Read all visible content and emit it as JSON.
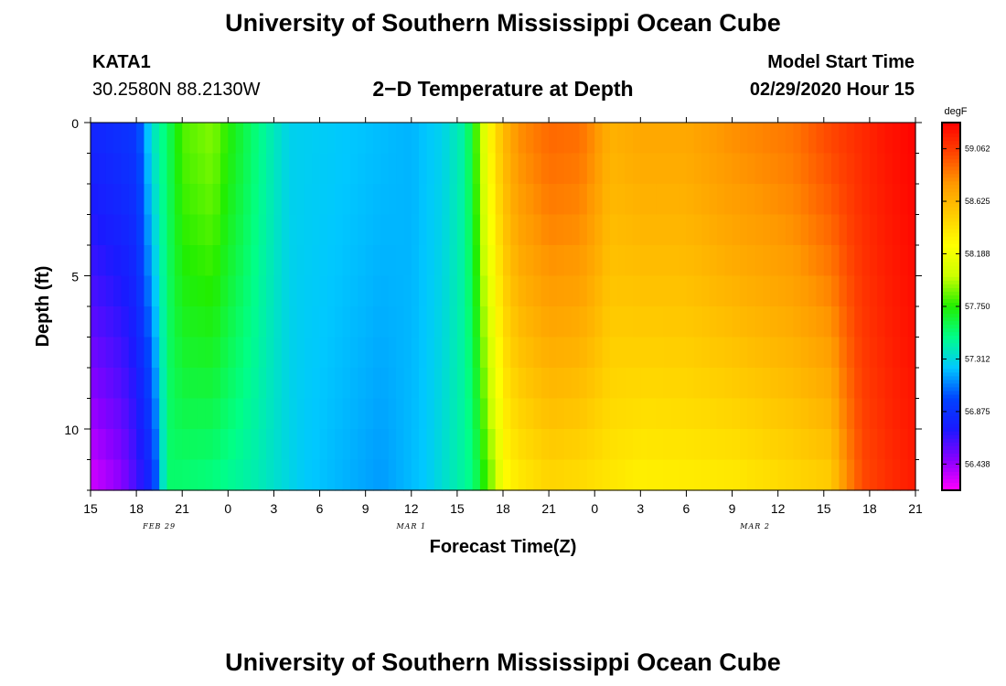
{
  "header": {
    "title_top": "University of Southern Mississippi Ocean Cube",
    "title_bottom": "University of Southern Mississippi Ocean Cube",
    "station": "KATA1",
    "location": "30.2580N 88.2130W",
    "center_title": "2−D Temperature at Depth",
    "model_label": "Model Start Time",
    "model_time": "02/29/2020 Hour 15"
  },
  "chart_data": {
    "type": "heatmap",
    "title": "2−D Temperature at Depth",
    "xlabel": "Forecast Time(Z)",
    "ylabel": "Depth (ft)",
    "x_hours_from_start": [
      0,
      54
    ],
    "x_ticks": [
      "15",
      "18",
      "21",
      "0",
      "3",
      "6",
      "9",
      "12",
      "15",
      "18",
      "21",
      "0",
      "3",
      "6",
      "9",
      "12",
      "15",
      "18",
      "21"
    ],
    "date_labels": [
      {
        "label": "FEB 29",
        "hour": 4.5
      },
      {
        "label": "MAR 1",
        "hour": 21
      },
      {
        "label": "MAR 2",
        "hour": 43.5
      }
    ],
    "ylim": [
      0,
      12
    ],
    "y_major_ticks": [
      0,
      5,
      10
    ],
    "colorbar": {
      "unit": "degF",
      "min": 56.22,
      "max": 59.28,
      "labels": [
        "59.062",
        "58.625",
        "58.188",
        "57.750",
        "57.312",
        "56.875",
        "56.438"
      ],
      "stops": [
        "#ff00ff",
        "#8800ff",
        "#1a1aff",
        "#0044ff",
        "#00c8ff",
        "#00ff88",
        "#22ee00",
        "#ccff00",
        "#ffff00",
        "#ffcc00",
        "#ff9900",
        "#ff4400",
        "#ff0000"
      ]
    },
    "surface_profile": [
      {
        "h": 0,
        "v": 56.8
      },
      {
        "h": 3,
        "v": 56.9
      },
      {
        "h": 4,
        "v": 57.35
      },
      {
        "h": 5,
        "v": 57.55
      },
      {
        "h": 6,
        "v": 57.82
      },
      {
        "h": 8,
        "v": 57.9
      },
      {
        "h": 9,
        "v": 57.75
      },
      {
        "h": 11,
        "v": 57.5
      },
      {
        "h": 13,
        "v": 57.28
      },
      {
        "h": 18,
        "v": 57.23
      },
      {
        "h": 21,
        "v": 57.2
      },
      {
        "h": 23,
        "v": 57.28
      },
      {
        "h": 24.5,
        "v": 57.45
      },
      {
        "h": 25.2,
        "v": 57.78
      },
      {
        "h": 26,
        "v": 58.25
      },
      {
        "h": 27,
        "v": 58.6
      },
      {
        "h": 28,
        "v": 58.8
      },
      {
        "h": 30,
        "v": 58.92
      },
      {
        "h": 32,
        "v": 58.9
      },
      {
        "h": 33,
        "v": 58.8
      },
      {
        "h": 34,
        "v": 58.65
      },
      {
        "h": 36,
        "v": 58.7
      },
      {
        "h": 39,
        "v": 58.7
      },
      {
        "h": 42,
        "v": 58.8
      },
      {
        "h": 46,
        "v": 58.88
      },
      {
        "h": 48,
        "v": 59.0
      },
      {
        "h": 50,
        "v": 59.1
      },
      {
        "h": 52,
        "v": 59.2
      },
      {
        "h": 54,
        "v": 59.27
      }
    ],
    "bottom_profile": [
      {
        "h": 0,
        "v": 56.3
      },
      {
        "h": 2,
        "v": 56.45
      },
      {
        "h": 4,
        "v": 56.8
      },
      {
        "h": 5,
        "v": 57.55
      },
      {
        "h": 8,
        "v": 57.5
      },
      {
        "h": 11,
        "v": 57.4
      },
      {
        "h": 14,
        "v": 57.25
      },
      {
        "h": 19,
        "v": 57.15
      },
      {
        "h": 22,
        "v": 57.25
      },
      {
        "h": 25,
        "v": 57.5
      },
      {
        "h": 26.3,
        "v": 57.9
      },
      {
        "h": 27.1,
        "v": 58.25
      },
      {
        "h": 28,
        "v": 58.35
      },
      {
        "h": 30,
        "v": 58.45
      },
      {
        "h": 32,
        "v": 58.42
      },
      {
        "h": 36,
        "v": 58.32
      },
      {
        "h": 42,
        "v": 58.35
      },
      {
        "h": 48.5,
        "v": 58.5
      },
      {
        "h": 49.3,
        "v": 58.75
      },
      {
        "h": 50.5,
        "v": 59.0
      },
      {
        "h": 52.5,
        "v": 59.12
      },
      {
        "h": 54,
        "v": 59.18
      }
    ]
  }
}
